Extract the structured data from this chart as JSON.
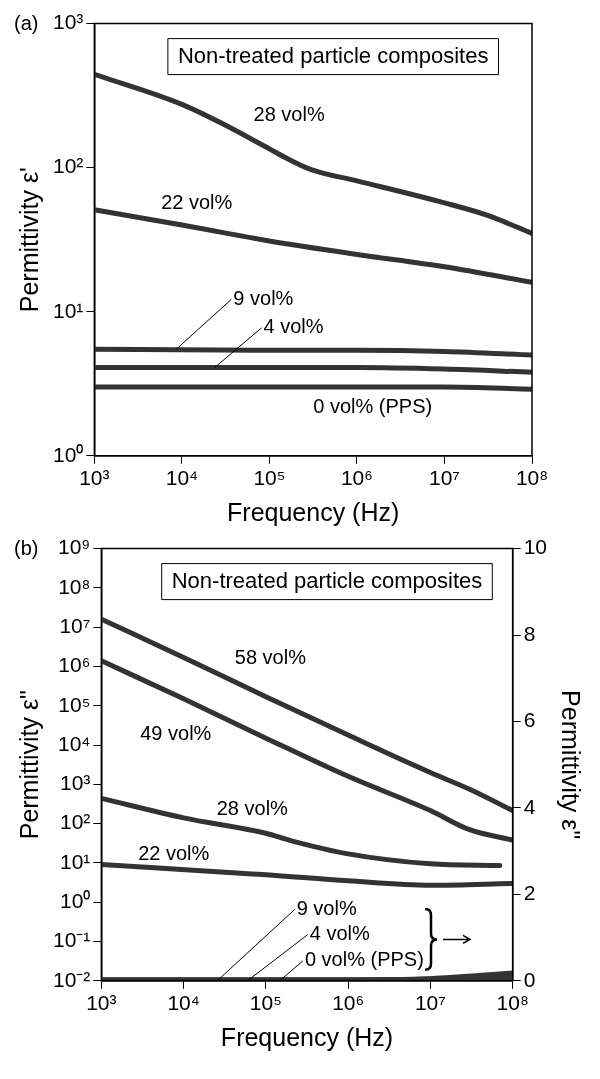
{
  "chart_data": [
    {
      "type": "line",
      "title": "Non-treated particle composites",
      "xlabel": "Frequency (Hz)",
      "ylabel": "Permittivity ε'",
      "log": "xy",
      "grid": false,
      "xlim": [
        1000,
        100000000
      ],
      "xticks": [
        {
          "value": 1000,
          "label": "10³"
        },
        {
          "value": 10000,
          "label": "10⁴"
        },
        {
          "value": 100000,
          "label": "10⁵"
        },
        {
          "value": 1000000,
          "label": "10⁶"
        },
        {
          "value": 10000000,
          "label": "10⁷"
        },
        {
          "value": 100000000,
          "label": "10⁸"
        }
      ],
      "ylim": [
        1,
        1000
      ],
      "yticks": [
        {
          "value": 1,
          "label": "10⁰"
        },
        {
          "value": 10,
          "label": "10¹"
        },
        {
          "value": 100,
          "label": "10²"
        },
        {
          "value": 1000,
          "label": "10³"
        }
      ],
      "series": [
        {
          "name": "28 vol%",
          "color": "#333333",
          "x": [
            1000,
            10000,
            30000,
            100000,
            150000,
            300000,
            1000000,
            10000000,
            30000000,
            100000000
          ],
          "values": [
            445,
            275,
            200,
            135,
            118,
            97,
            81,
            57,
            47,
            35
          ]
        },
        {
          "name": "22 vol%",
          "color": "#333333",
          "x": [
            1000,
            10000,
            100000,
            1000000,
            10000000,
            100000000
          ],
          "values": [
            51,
            40,
            31,
            25,
            20.5,
            16
          ]
        },
        {
          "name": "9 vol%",
          "color": "#333333",
          "x": [
            1000,
            100000,
            1000000,
            10000000,
            100000000
          ],
          "values": [
            5.5,
            5.4,
            5.4,
            5.3,
            5.0
          ]
        },
        {
          "name": "4 vol%",
          "color": "#333333",
          "x": [
            1000,
            100000,
            1000000,
            10000000,
            100000000
          ],
          "values": [
            4.1,
            4.1,
            4.1,
            4.0,
            3.8
          ]
        },
        {
          "name": "0 vol% (PPS)",
          "color": "#333333",
          "x": [
            1000,
            100000,
            1000000,
            10000000,
            100000000
          ],
          "values": [
            3.0,
            3.0,
            3.0,
            3.0,
            2.9
          ]
        }
      ],
      "annotations": [
        "(a)"
      ]
    },
    {
      "type": "line",
      "title": "Non-treated particle composites",
      "xlabel": "Frequency (Hz)",
      "ylabel": "Permittivity ε\"",
      "y2label": "Permittivity ε\"",
      "log": "xy",
      "grid": false,
      "xlim": [
        1000,
        100000000
      ],
      "xticks": [
        {
          "value": 1000,
          "label": "10³"
        },
        {
          "value": 10000,
          "label": "10⁴"
        },
        {
          "value": 100000,
          "label": "10⁵"
        },
        {
          "value": 1000000,
          "label": "10⁶"
        },
        {
          "value": 10000000,
          "label": "10⁷"
        },
        {
          "value": 100000000,
          "label": "10⁸"
        }
      ],
      "ylim": [
        0.01,
        1000000000
      ],
      "yticks": [
        {
          "value": 0.01,
          "label": "10⁻²"
        },
        {
          "value": 0.1,
          "label": "10⁻¹"
        },
        {
          "value": 1,
          "label": "10⁰"
        },
        {
          "value": 10,
          "label": "10¹"
        },
        {
          "value": 100,
          "label": "10²"
        },
        {
          "value": 1000,
          "label": "10³"
        },
        {
          "value": 10000,
          "label": "10⁴"
        },
        {
          "value": 100000,
          "label": "10⁵"
        },
        {
          "value": 1000000,
          "label": "10⁶"
        },
        {
          "value": 10000000,
          "label": "10⁷"
        },
        {
          "value": 100000000,
          "label": "10⁸"
        },
        {
          "value": 1000000000,
          "label": "10⁹"
        }
      ],
      "y2lim": [
        0,
        10
      ],
      "y2ticks": [
        0,
        2,
        4,
        6,
        8,
        10
      ],
      "series": [
        {
          "name": "58 vol%",
          "color": "#333333",
          "x": [
            1000,
            10000,
            100000,
            1000000,
            10000000,
            30000000,
            100000000
          ],
          "values": [
            16000000,
            1700000,
            170000,
            18000,
            2000,
            750,
            215
          ]
        },
        {
          "name": "49 vol%",
          "color": "#333333",
          "x": [
            1000,
            10000,
            100000,
            1000000,
            10000000,
            30000000,
            100000000
          ],
          "values": [
            1400000,
            150000,
            15000,
            1600,
            215,
            70,
            38
          ]
        },
        {
          "name": "28 vol%",
          "color": "#333333",
          "x": [
            1000,
            10000,
            100000,
            200000,
            1000000,
            10000000,
            70000000
          ],
          "values": [
            440,
            140,
            57,
            37,
            17,
            9.5,
            8.6
          ]
        },
        {
          "name": "22 vol%",
          "color": "#333333",
          "x": [
            1000,
            100000,
            1000000,
            10000000,
            100000000
          ],
          "values": [
            9.1,
            5,
            3.5,
            2.7,
            3.0
          ]
        },
        {
          "name": "9 vol%",
          "color": "#333333",
          "axis": "y2",
          "x": [
            1000,
            1000000,
            10000000,
            100000000
          ],
          "values": [
            0.02,
            0.02,
            0.05,
            0.18
          ]
        },
        {
          "name": "4 vol%",
          "color": "#333333",
          "axis": "y2",
          "x": [
            1000,
            1000000,
            10000000,
            100000000
          ],
          "values": [
            0.02,
            0.02,
            0.04,
            0.12
          ]
        },
        {
          "name": "0 vol% (PPS)",
          "color": "#333333",
          "axis": "y2",
          "x": [
            1000,
            1000000,
            10000000,
            100000000
          ],
          "values": [
            0.02,
            0.02,
            0.03,
            0.06
          ]
        }
      ],
      "annotations": [
        "(b)"
      ]
    }
  ]
}
